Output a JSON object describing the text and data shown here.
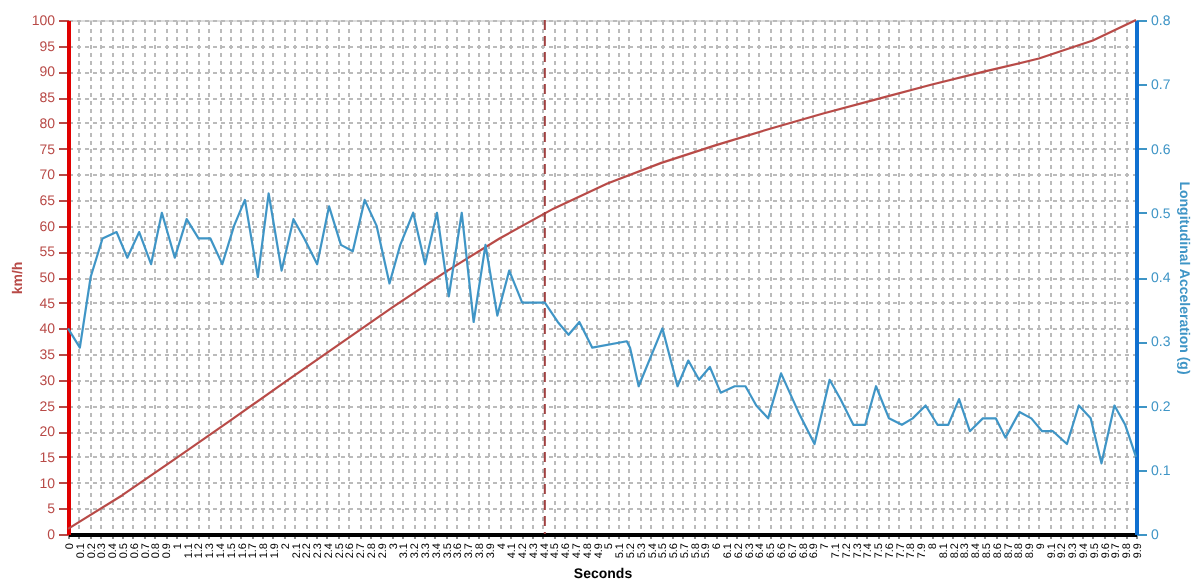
{
  "chart_data": {
    "type": "line",
    "xlabel": "Seconds",
    "ylabel": "km/h",
    "y2label": "Longitudinal Acceleration (g)",
    "xlim": [
      0,
      9.9
    ],
    "xticks": [
      0,
      0.1,
      0.2,
      0.3,
      0.4,
      0.5,
      0.6,
      0.7,
      0.8,
      0.9,
      1,
      1.1,
      1.2,
      1.3,
      1.4,
      1.5,
      1.6,
      1.7,
      1.8,
      1.9,
      2,
      2.1,
      2.2,
      2.3,
      2.4,
      2.5,
      2.6,
      2.7,
      2.8,
      2.9,
      3,
      3.1,
      3.2,
      3.3,
      3.4,
      3.5,
      3.6,
      3.7,
      3.8,
      3.9,
      4,
      4.1,
      4.2,
      4.3,
      4.4,
      4.5,
      4.6,
      4.7,
      4.8,
      4.9,
      5,
      5.1,
      5.2,
      5.3,
      5.4,
      5.5,
      5.6,
      5.7,
      5.8,
      5.9,
      6,
      6.1,
      6.2,
      6.3,
      6.4,
      6.5,
      6.6,
      6.7,
      6.8,
      6.9,
      7,
      7.1,
      7.2,
      7.3,
      7.4,
      7.5,
      7.6,
      7.7,
      7.8,
      7.9,
      8,
      8.1,
      8.2,
      8.3,
      8.4,
      8.5,
      8.6,
      8.7,
      8.8,
      8.9,
      9,
      9.1,
      9.2,
      9.3,
      9.4,
      9.5,
      9.6,
      9.7,
      9.8,
      9.9
    ],
    "ylim": [
      0,
      100
    ],
    "yticks": [
      0,
      5,
      10,
      15,
      20,
      25,
      30,
      35,
      40,
      45,
      50,
      55,
      60,
      65,
      70,
      75,
      80,
      85,
      90,
      95,
      100
    ],
    "y2lim": [
      0,
      0.8
    ],
    "y2ticks": [
      0,
      0.1,
      0.2,
      0.3,
      0.4,
      0.5,
      0.6,
      0.7,
      0.8
    ],
    "grid": true,
    "series": [
      {
        "color": "#b84a47",
        "axis": "y",
        "x": [
          0,
          0.5,
          1,
          1.5,
          2,
          2.5,
          3,
          3.5,
          4,
          4.5,
          5,
          5.5,
          6,
          6.5,
          7,
          7.5,
          8,
          8.5,
          9,
          9.5,
          9.9
        ],
        "values": [
          1,
          7.5,
          14.7,
          22,
          29.4,
          36.7,
          44,
          51,
          57.5,
          63.3,
          68.2,
          72.2,
          75.6,
          78.8,
          81.8,
          84.6,
          87.4,
          90,
          92.5,
          96,
          100
        ]
      },
      {
        "color": "#3f95c6",
        "axis": "y2",
        "x": [
          0,
          0.11,
          0.21,
          0.32,
          0.45,
          0.55,
          0.66,
          0.77,
          0.87,
          0.99,
          1.1,
          1.21,
          1.32,
          1.43,
          1.54,
          1.64,
          1.76,
          1.86,
          1.98,
          2.09,
          2.19,
          2.31,
          2.42,
          2.53,
          2.64,
          2.75,
          2.86,
          2.98,
          3.08,
          3.2,
          3.31,
          3.42,
          3.53,
          3.65,
          3.76,
          3.87,
          3.98,
          4.09,
          4.21,
          4.42,
          4.54,
          4.64,
          4.74,
          4.86,
          5.18,
          5.21,
          5.29,
          5.51,
          5.65,
          5.75,
          5.85,
          5.95,
          6.05,
          6.18,
          6.28,
          6.38,
          6.49,
          6.61,
          6.77,
          6.92,
          7.06,
          7.16,
          7.28,
          7.39,
          7.49,
          7.61,
          7.73,
          7.83,
          7.95,
          8.06,
          8.16,
          8.26,
          8.36,
          8.48,
          8.6,
          8.69,
          8.82,
          8.93,
          9.03,
          9.13,
          9.26,
          9.37,
          9.48,
          9.58,
          9.7,
          9.8,
          9.9
        ],
        "values": [
          0.32,
          0.29,
          0.4,
          0.46,
          0.47,
          0.43,
          0.47,
          0.42,
          0.5,
          0.43,
          0.49,
          0.46,
          0.46,
          0.42,
          0.48,
          0.52,
          0.4,
          0.53,
          0.41,
          0.49,
          0.46,
          0.42,
          0.51,
          0.45,
          0.44,
          0.52,
          0.48,
          0.39,
          0.45,
          0.5,
          0.42,
          0.5,
          0.37,
          0.5,
          0.33,
          0.45,
          0.34,
          0.41,
          0.36,
          0.36,
          0.33,
          0.31,
          0.33,
          0.29,
          0.3,
          0.29,
          0.23,
          0.32,
          0.23,
          0.27,
          0.24,
          0.26,
          0.22,
          0.23,
          0.23,
          0.2,
          0.18,
          0.25,
          0.19,
          0.14,
          0.24,
          0.21,
          0.17,
          0.17,
          0.23,
          0.18,
          0.17,
          0.18,
          0.2,
          0.17,
          0.17,
          0.21,
          0.16,
          0.18,
          0.18,
          0.15,
          0.19,
          0.18,
          0.16,
          0.16,
          0.14,
          0.2,
          0.18,
          0.11,
          0.2,
          0.17,
          0.12
        ]
      }
    ],
    "ref_lines": [
      {
        "axis": "x",
        "value": 4.42,
        "color": "#a04040",
        "line_style": "dashed"
      }
    ]
  }
}
